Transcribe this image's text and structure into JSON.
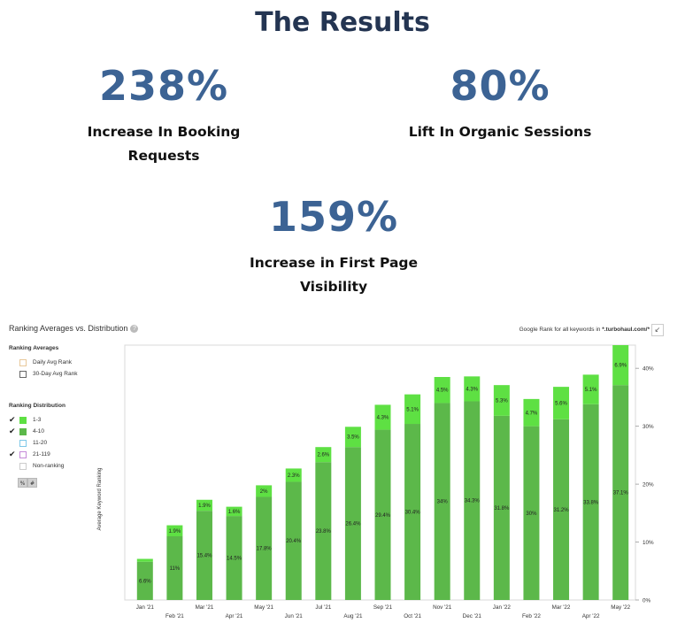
{
  "title": "The Results",
  "stats": [
    {
      "value": "238%",
      "line1": "Increase In Booking",
      "line2": "Requests"
    },
    {
      "value": "80%",
      "line1": "Lift In Organic Sessions",
      "line2": ""
    },
    {
      "value": "159%",
      "line1": "Increase in First Page",
      "line2": "Visibility"
    }
  ],
  "panel": {
    "title": "Ranking Averages vs. Distribution",
    "note_prefix": "Google Rank for all keywords in ",
    "note_domain": "*.turbohaul.com/*",
    "note_suffix": "",
    "averages_heading": "Ranking Averages",
    "averages": [
      "Daily Avg Rank",
      "30-Day Avg Rank"
    ],
    "distribution_heading": "Ranking Distribution",
    "distribution": [
      {
        "label": "1-3",
        "checked": true,
        "color": "#5ee043"
      },
      {
        "label": "4-10",
        "checked": true,
        "color": "#5cb84a"
      },
      {
        "label": "11-20",
        "checked": false,
        "color": "#7ec8e8"
      },
      {
        "label": "21-119",
        "checked": true,
        "color": "#c58ad8"
      },
      {
        "label": "Non-ranking",
        "checked": false,
        "color": "#cccccc"
      }
    ],
    "toggle_pct": "%",
    "toggle_num": "#"
  },
  "chart_data": {
    "type": "bar",
    "stacked": true,
    "ylabel": "Average Keyword Ranking",
    "categories": [
      "Jan '21",
      "Feb '21",
      "Mar '21",
      "Apr '21",
      "May '21",
      "Jun '21",
      "Jul '21",
      "Aug '21",
      "Sep '21",
      "Oct '21",
      "Nov '21",
      "Dec '21",
      "Jan '22",
      "Feb '22",
      "Mar '22",
      "Apr '22",
      "May '22"
    ],
    "series": [
      {
        "name": "4-10",
        "color": "#5cb84a",
        "values": [
          6.6,
          11,
          15.4,
          14.5,
          17.8,
          20.4,
          23.8,
          26.4,
          29.4,
          30.4,
          34,
          34.3,
          31.8,
          30,
          31.2,
          33.8,
          37.1
        ],
        "labels": [
          "6.6%",
          "11%",
          "15.4%",
          "14.5%",
          "17.8%",
          "20.4%",
          "23.8%",
          "26.4%",
          "29.4%",
          "30.4%",
          "34%",
          "34.3%",
          "31.8%",
          "30%",
          "31.2%",
          "33.8%",
          "37.1%"
        ]
      },
      {
        "name": "1-3",
        "color": "#5ee043",
        "values": [
          0.5,
          1.9,
          1.9,
          1.6,
          2,
          2.3,
          2.6,
          3.5,
          4.3,
          5.1,
          4.5,
          4.3,
          5.3,
          4.7,
          5.6,
          5.1,
          6.9
        ],
        "labels": [
          "",
          "1.9%",
          "1.9%",
          "1.6%",
          "2%",
          "2.3%",
          "2.6%",
          "3.5%",
          "4.3%",
          "5.1%",
          "4.5%",
          "4.3%",
          "5.3%",
          "4.7%",
          "5.6%",
          "5.1%",
          "6.9%"
        ]
      }
    ],
    "y_ticks": [
      "0%",
      "10%",
      "20%",
      "30%",
      "40%"
    ],
    "ylim": [
      0,
      44
    ],
    "grid": false
  }
}
